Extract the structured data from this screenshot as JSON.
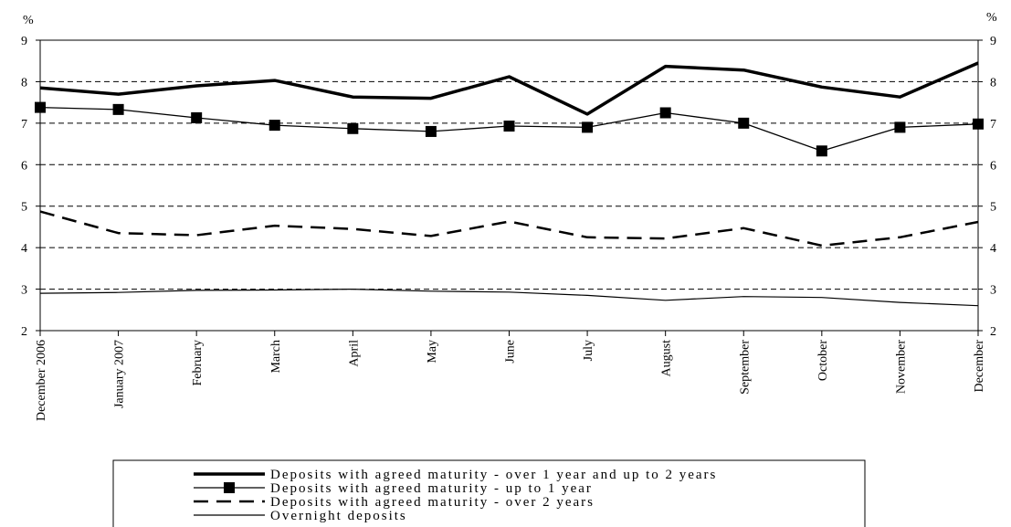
{
  "chart_data": {
    "type": "line",
    "title": "",
    "ylabel_left": "%",
    "ylabel_right": "%",
    "ylim": [
      2,
      9
    ],
    "yticks": [
      "2",
      "3",
      "4",
      "5",
      "6",
      "7",
      "8",
      "9"
    ],
    "grid": "horizontal dashed",
    "categories": [
      "December 2006",
      "January 2007",
      "February",
      "March",
      "April",
      "May",
      "June",
      "July",
      "August",
      "September",
      "October",
      "November",
      "December"
    ],
    "series": [
      {
        "name": "Deposits with agreed maturity - over 1 year and up to 2 years",
        "style": "thick",
        "color": "#000000",
        "values": [
          7.85,
          7.7,
          7.9,
          8.03,
          7.63,
          7.6,
          8.12,
          7.22,
          8.37,
          8.28,
          7.87,
          7.63,
          8.45
        ]
      },
      {
        "name": "Deposits with agreed maturity - up to 1 year",
        "style": "square-markers",
        "color": "#000000",
        "values": [
          7.38,
          7.33,
          7.13,
          6.95,
          6.87,
          6.8,
          6.93,
          6.9,
          7.25,
          7.0,
          6.33,
          6.9,
          6.98
        ]
      },
      {
        "name": "Deposits with agreed maturity - over 2 years",
        "style": "dashed",
        "color": "#000000",
        "values": [
          4.87,
          4.35,
          4.3,
          4.53,
          4.45,
          4.28,
          4.63,
          4.25,
          4.22,
          4.47,
          4.05,
          4.25,
          4.62
        ]
      },
      {
        "name": "Overnight deposits",
        "style": "thin",
        "color": "#000000",
        "values": [
          2.9,
          2.92,
          2.97,
          2.98,
          3.0,
          2.95,
          2.93,
          2.85,
          2.73,
          2.82,
          2.8,
          2.68,
          2.6
        ]
      }
    ],
    "legend_position": "bottom-center"
  }
}
